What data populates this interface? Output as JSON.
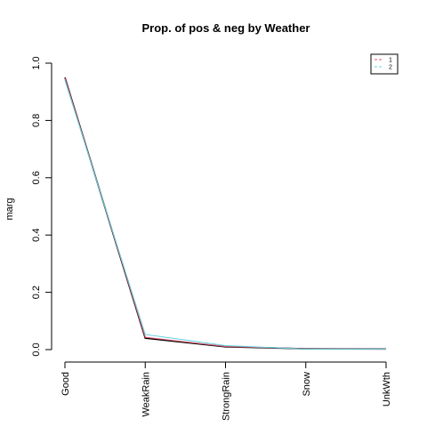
{
  "chart_data": {
    "type": "line",
    "title": "Prop. of pos & neg by Weather",
    "xlabel": "",
    "ylabel": "marg",
    "categories": [
      "Good",
      "WeakRain",
      "StrongRain",
      "Snow",
      "UnkWth"
    ],
    "ylim": [
      0,
      1
    ],
    "yticks": [
      "0.0",
      "0.2",
      "0.4",
      "0.6",
      "0.8",
      "1.0"
    ],
    "series": [
      {
        "name": "1",
        "color": "#000000",
        "dash": "solid",
        "values": [
          0.95,
          0.04,
          0.01,
          0.003,
          0.002
        ]
      },
      {
        "name": "1",
        "color": "#df536b",
        "dash": "solid",
        "values": [
          0.948,
          0.043,
          0.011,
          0.003,
          0.002
        ]
      },
      {
        "name": "2",
        "color": "#61d0df",
        "dash": "solid",
        "values": [
          0.94,
          0.053,
          0.014,
          0.002,
          0.002
        ]
      }
    ],
    "legend": {
      "position": "top-right",
      "entries": [
        {
          "label": "1",
          "color": "#df536b"
        },
        {
          "label": "2",
          "color": "#61d0df"
        }
      ]
    },
    "grid": false
  }
}
